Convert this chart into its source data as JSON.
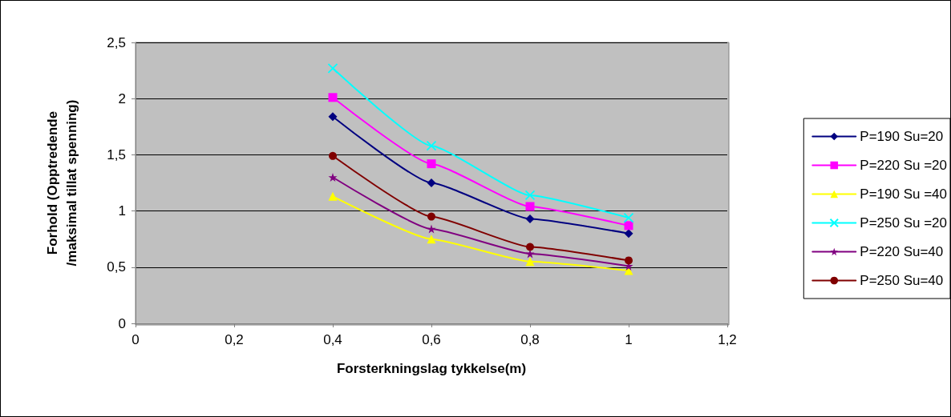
{
  "chart_data": {
    "type": "line",
    "xlabel": "Forsterkningslag tykkelse(m)",
    "ylabel": "Forhold (Opptredende\n/maksimal tillat spenning)",
    "x": [
      0.4,
      0.6,
      0.8,
      1
    ],
    "xlim": [
      0,
      1.2
    ],
    "xticks": [
      0,
      {
        "value": 0.2,
        "label": "0,2"
      },
      {
        "value": 0.4,
        "label": "0,4"
      },
      {
        "value": 0.6,
        "label": "0,6"
      },
      {
        "value": 0.8,
        "label": "0,8"
      },
      1,
      {
        "value": 1.2,
        "label": "1,2"
      }
    ],
    "ylim": [
      0,
      2.5
    ],
    "yticks": [
      0,
      {
        "value": 0.5,
        "label": "0,5"
      },
      1,
      {
        "value": 1.5,
        "label": "1,5"
      },
      2,
      {
        "value": 2.5,
        "label": "2,5"
      }
    ],
    "grid": "y",
    "legend": "right",
    "line_style": "solid",
    "series": [
      {
        "name": "P=190 Su=20",
        "color": "#000080",
        "marker": "diamond",
        "values": [
          1.84,
          1.25,
          0.93,
          0.8
        ]
      },
      {
        "name": "P=220 Su =20",
        "color": "#ff00ff",
        "marker": "square",
        "values": [
          2.01,
          1.42,
          1.04,
          0.87
        ]
      },
      {
        "name": "P=190 Su =40",
        "color": "#ffff00",
        "marker": "triangle",
        "values": [
          1.13,
          0.75,
          0.55,
          0.47
        ]
      },
      {
        "name": "P=250 Su =20",
        "color": "#00ffff",
        "marker": "cross",
        "values": [
          2.27,
          1.58,
          1.14,
          0.94
        ]
      },
      {
        "name": "P=220 Su=40",
        "color": "#800080",
        "marker": "star",
        "values": [
          1.3,
          0.84,
          0.62,
          0.51
        ]
      },
      {
        "name": "P=250 Su=40",
        "color": "#800000",
        "marker": "circle",
        "values": [
          1.49,
          0.95,
          0.68,
          0.56
        ]
      }
    ]
  }
}
